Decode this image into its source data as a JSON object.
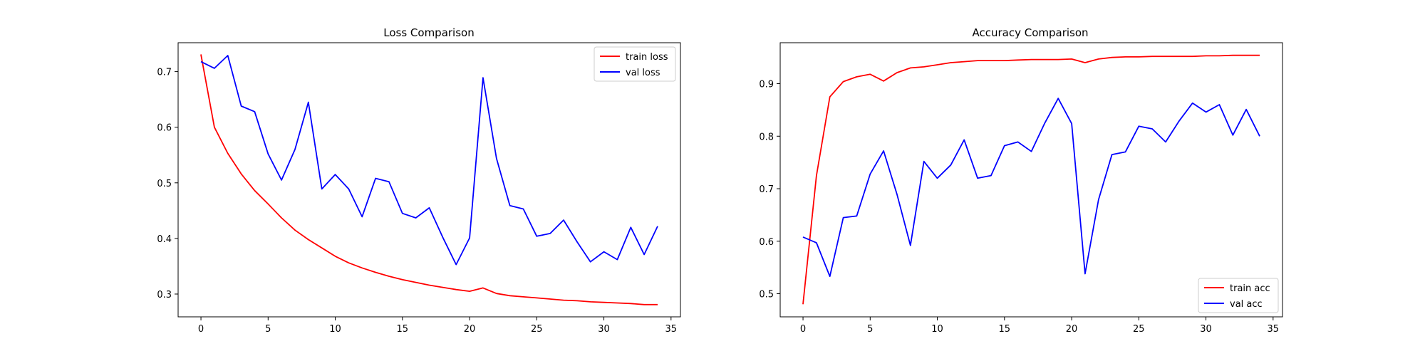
{
  "chart_data": [
    {
      "type": "line",
      "title": "Loss Comparison",
      "xlabel": "",
      "ylabel": "",
      "xlim": [
        -1.7,
        35.7
      ],
      "ylim": [
        0.259,
        0.752
      ],
      "xticks": [
        0,
        5,
        10,
        15,
        20,
        25,
        30,
        35
      ],
      "yticks": [
        0.3,
        0.4,
        0.5,
        0.6,
        0.7
      ],
      "xtick_labels": [
        "0",
        "5",
        "10",
        "15",
        "20",
        "25",
        "30",
        "35"
      ],
      "ytick_labels": [
        "0.3",
        "0.4",
        "0.5",
        "0.6",
        "0.7"
      ],
      "grid": false,
      "legend_position": "upper-right",
      "x": [
        0,
        1,
        2,
        3,
        4,
        5,
        6,
        7,
        8,
        9,
        10,
        11,
        12,
        13,
        14,
        15,
        16,
        17,
        18,
        19,
        20,
        21,
        22,
        23,
        24,
        25,
        26,
        27,
        28,
        29,
        30,
        31,
        32,
        33,
        34
      ],
      "series": [
        {
          "name": "train loss",
          "color": "#ff0000",
          "values": [
            0.731,
            0.6,
            0.553,
            0.516,
            0.486,
            0.462,
            0.437,
            0.415,
            0.398,
            0.383,
            0.368,
            0.356,
            0.347,
            0.339,
            0.332,
            0.326,
            0.321,
            0.316,
            0.312,
            0.308,
            0.305,
            0.311,
            0.301,
            0.297,
            0.295,
            0.293,
            0.291,
            0.289,
            0.288,
            0.286,
            0.285,
            0.284,
            0.283,
            0.281,
            0.281
          ]
        },
        {
          "name": "val loss",
          "color": "#0000ff",
          "values": [
            0.718,
            0.706,
            0.729,
            0.638,
            0.628,
            0.552,
            0.505,
            0.56,
            0.645,
            0.489,
            0.515,
            0.489,
            0.439,
            0.508,
            0.502,
            0.445,
            0.437,
            0.455,
            0.402,
            0.353,
            0.401,
            0.689,
            0.544,
            0.459,
            0.453,
            0.404,
            0.409,
            0.433,
            0.394,
            0.358,
            0.376,
            0.362,
            0.42,
            0.371,
            0.422
          ]
        }
      ]
    },
    {
      "type": "line",
      "title": "Accuracy Comparison",
      "xlabel": "",
      "ylabel": "",
      "xlim": [
        -1.7,
        35.7
      ],
      "ylim": [
        0.456,
        0.978
      ],
      "xticks": [
        0,
        5,
        10,
        15,
        20,
        25,
        30,
        35
      ],
      "yticks": [
        0.5,
        0.6,
        0.7,
        0.8,
        0.9
      ],
      "xtick_labels": [
        "0",
        "5",
        "10",
        "15",
        "20",
        "25",
        "30",
        "35"
      ],
      "ytick_labels": [
        "0.5",
        "0.6",
        "0.7",
        "0.8",
        "0.9"
      ],
      "grid": false,
      "legend_position": "lower-right",
      "x": [
        0,
        1,
        2,
        3,
        4,
        5,
        6,
        7,
        8,
        9,
        10,
        11,
        12,
        13,
        14,
        15,
        16,
        17,
        18,
        19,
        20,
        21,
        22,
        23,
        24,
        25,
        26,
        27,
        28,
        29,
        30,
        31,
        32,
        33,
        34
      ],
      "series": [
        {
          "name": "train acc",
          "color": "#ff0000",
          "values": [
            0.48,
            0.725,
            0.875,
            0.904,
            0.913,
            0.918,
            0.905,
            0.921,
            0.93,
            0.932,
            0.936,
            0.94,
            0.942,
            0.944,
            0.944,
            0.944,
            0.945,
            0.946,
            0.946,
            0.946,
            0.947,
            0.94,
            0.947,
            0.95,
            0.951,
            0.951,
            0.952,
            0.952,
            0.952,
            0.952,
            0.953,
            0.953,
            0.954,
            0.954,
            0.954
          ]
        },
        {
          "name": "val acc",
          "color": "#0000ff",
          "values": [
            0.608,
            0.597,
            0.533,
            0.645,
            0.648,
            0.728,
            0.772,
            0.689,
            0.592,
            0.752,
            0.72,
            0.745,
            0.793,
            0.72,
            0.725,
            0.782,
            0.789,
            0.771,
            0.825,
            0.872,
            0.824,
            0.538,
            0.679,
            0.765,
            0.77,
            0.819,
            0.814,
            0.789,
            0.829,
            0.863,
            0.846,
            0.86,
            0.802,
            0.851,
            0.8
          ]
        }
      ]
    }
  ]
}
